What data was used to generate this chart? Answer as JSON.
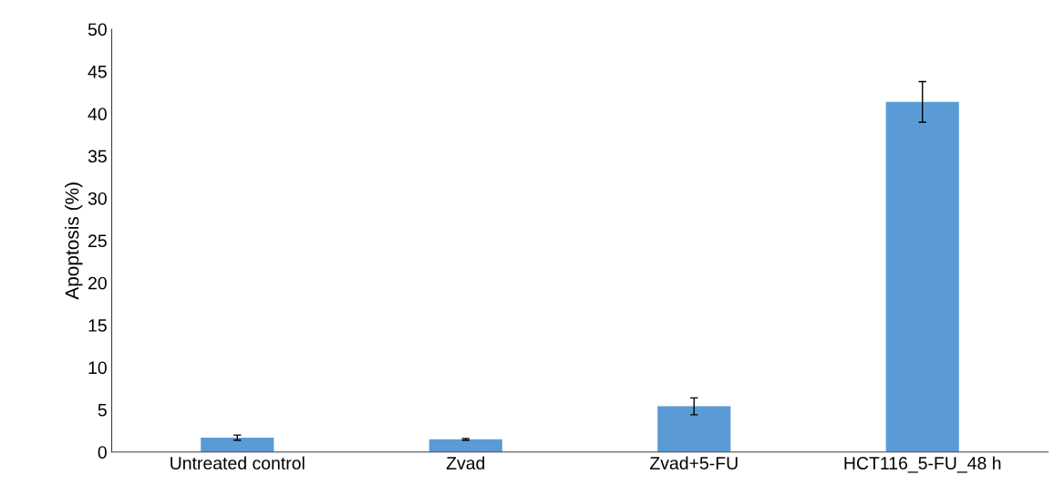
{
  "chart_data": {
    "type": "bar",
    "ylabel": "Apoptosis (%)",
    "categories": [
      "Untreated control",
      "Zvad",
      "Zvad+5-FU",
      "HCT116_5-FU_48 h"
    ],
    "values": [
      1.7,
      1.5,
      5.4,
      41.4
    ],
    "errors": [
      0.3,
      0.1,
      1.0,
      2.4
    ],
    "color": "#5b9bd5",
    "ylim": [
      0,
      50
    ],
    "yticks": [
      0,
      5,
      10,
      15,
      20,
      25,
      30,
      35,
      40,
      45,
      50
    ],
    "grid": false,
    "legend": false
  }
}
